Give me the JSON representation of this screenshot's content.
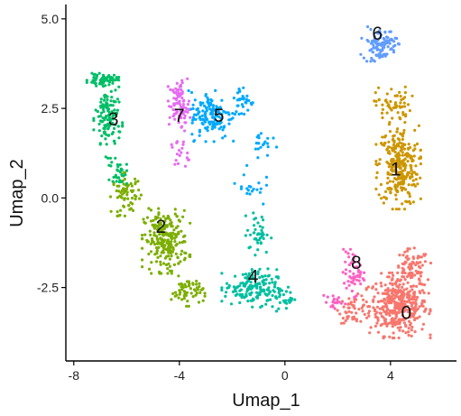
{
  "chart_data": {
    "type": "scatter",
    "title": "",
    "xlabel": "Umap_1",
    "ylabel": "Umap_2",
    "xlim": [
      -8.3,
      6.5
    ],
    "ylim": [
      -4.55,
      5.4
    ],
    "x_ticks": [
      -8,
      -4,
      0,
      4
    ],
    "x_tick_labels": [
      "-8",
      "-4",
      "0",
      "4"
    ],
    "y_ticks": [
      -2.5,
      0.0,
      2.5,
      5.0
    ],
    "y_tick_labels": [
      "-2.5",
      "0.0",
      "2.5",
      "5.0"
    ],
    "grid": false,
    "legend": "none",
    "series": [
      {
        "cluster": "0",
        "color": "#F8766D",
        "regions": [
          {
            "center": [
              4.3,
              -3.0
            ],
            "spread": [
              1.0,
              0.75
            ],
            "count": 380
          },
          {
            "center": [
              4.8,
              -2.0
            ],
            "spread": [
              0.6,
              0.5
            ],
            "count": 80
          },
          {
            "center": [
              2.6,
              -3.1
            ],
            "spread": [
              0.5,
              0.35
            ],
            "count": 50
          }
        ]
      },
      {
        "cluster": "1",
        "color": "#CD9600",
        "regions": [
          {
            "center": [
              4.3,
              0.9
            ],
            "spread": [
              0.7,
              1.0
            ],
            "count": 280
          },
          {
            "center": [
              4.1,
              2.6
            ],
            "spread": [
              0.6,
              0.45
            ],
            "count": 60
          }
        ]
      },
      {
        "cluster": "2",
        "color": "#7CAE00",
        "regions": [
          {
            "center": [
              -4.5,
              -1.2
            ],
            "spread": [
              0.75,
              0.75
            ],
            "count": 240
          },
          {
            "center": [
              -6.0,
              0.1
            ],
            "spread": [
              0.5,
              0.5
            ],
            "count": 70
          },
          {
            "center": [
              -3.7,
              -2.6
            ],
            "spread": [
              0.55,
              0.35
            ],
            "count": 60
          }
        ]
      },
      {
        "cluster": "3",
        "color": "#00BE67",
        "regions": [
          {
            "center": [
              -6.7,
              2.2
            ],
            "spread": [
              0.45,
              0.9
            ],
            "count": 130
          },
          {
            "center": [
              -6.9,
              3.3
            ],
            "spread": [
              0.5,
              0.15
            ],
            "count": 60
          },
          {
            "center": [
              -6.3,
              0.7
            ],
            "spread": [
              0.3,
              0.3
            ],
            "count": 30
          }
        ]
      },
      {
        "cluster": "4",
        "color": "#00BFA0",
        "regions": [
          {
            "center": [
              -1.3,
              -2.5
            ],
            "spread": [
              0.9,
              0.45
            ],
            "count": 150
          },
          {
            "center": [
              -1.0,
              -1.0
            ],
            "spread": [
              0.4,
              0.5
            ],
            "count": 40
          },
          {
            "center": [
              -0.2,
              -2.8
            ],
            "spread": [
              0.6,
              0.3
            ],
            "count": 35
          }
        ]
      },
      {
        "cluster": "5",
        "color": "#00A9FF",
        "regions": [
          {
            "center": [
              -2.8,
              2.3
            ],
            "spread": [
              0.7,
              0.6
            ],
            "count": 140
          },
          {
            "center": [
              -1.6,
              2.7
            ],
            "spread": [
              0.4,
              0.4
            ],
            "count": 35
          },
          {
            "center": [
              -0.8,
              1.6
            ],
            "spread": [
              0.4,
              0.4
            ],
            "count": 20
          },
          {
            "center": [
              -1.3,
              0.3
            ],
            "spread": [
              0.5,
              0.5
            ],
            "count": 20
          }
        ]
      },
      {
        "cluster": "6",
        "color": "#619CFF",
        "regions": [
          {
            "center": [
              3.6,
              4.3
            ],
            "spread": [
              0.6,
              0.4
            ],
            "count": 100
          }
        ]
      },
      {
        "cluster": "7",
        "color": "#E76BF3",
        "regions": [
          {
            "center": [
              -4.0,
              2.6
            ],
            "spread": [
              0.35,
              0.6
            ],
            "count": 90
          },
          {
            "center": [
              -4.0,
              1.2
            ],
            "spread": [
              0.3,
              0.4
            ],
            "count": 20
          }
        ]
      },
      {
        "cluster": "8",
        "color": "#FF61C3",
        "regions": [
          {
            "center": [
              2.6,
              -2.1
            ],
            "spread": [
              0.35,
              0.55
            ],
            "count": 55
          },
          {
            "center": [
              1.8,
              -2.9
            ],
            "spread": [
              0.4,
              0.25
            ],
            "count": 20
          }
        ]
      }
    ],
    "cluster_labels": [
      {
        "text": "0",
        "x": 4.6,
        "y": -3.2
      },
      {
        "text": "1",
        "x": 4.2,
        "y": 0.8
      },
      {
        "text": "2",
        "x": -4.7,
        "y": -0.8
      },
      {
        "text": "3",
        "x": -6.5,
        "y": 2.2
      },
      {
        "text": "4",
        "x": -1.2,
        "y": -2.2
      },
      {
        "text": "5",
        "x": -2.5,
        "y": 2.3
      },
      {
        "text": "6",
        "x": 3.5,
        "y": 4.6
      },
      {
        "text": "7",
        "x": -4.0,
        "y": 2.3
      },
      {
        "text": "8",
        "x": 2.7,
        "y": -1.8
      }
    ]
  }
}
